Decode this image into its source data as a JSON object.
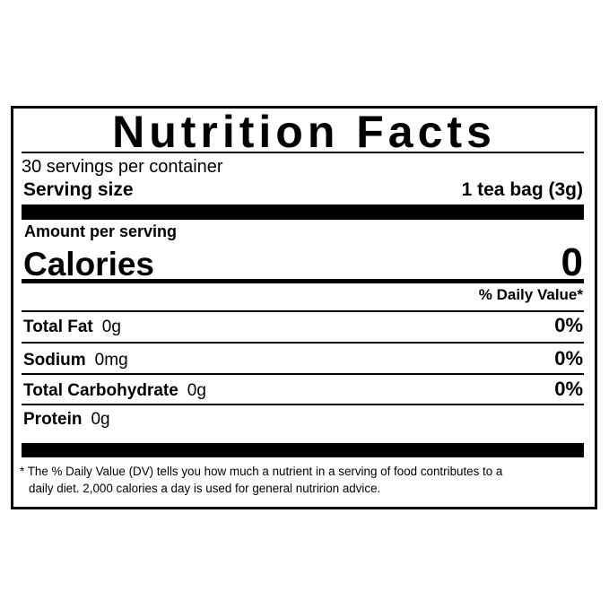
{
  "label": {
    "title": "Nutrition Facts",
    "servings_per_container": "30 servings per container",
    "serving_size_label": "Serving size",
    "serving_size_value": "1 tea bag (3g)",
    "amount_per_serving": "Amount per serving",
    "calories_label": "Calories",
    "calories_value": "0",
    "daily_value_header": "% Daily Value*",
    "nutrients": [
      {
        "name": "Total Fat",
        "amount": "0g",
        "dv": "0%"
      },
      {
        "name": "Sodium",
        "amount": "0mg",
        "dv": "0%"
      },
      {
        "name": "Total Carbohydrate",
        "amount": "0g",
        "dv": "0%"
      },
      {
        "name": "Protein",
        "amount": "0g",
        "dv": ""
      }
    ],
    "footnote_line1": "* The % Daily Value (DV) tells you how much a nutrient in a serving of food contributes to a",
    "footnote_line2": "daily diet. 2,000 calories a day is used for general nutririon advice."
  }
}
